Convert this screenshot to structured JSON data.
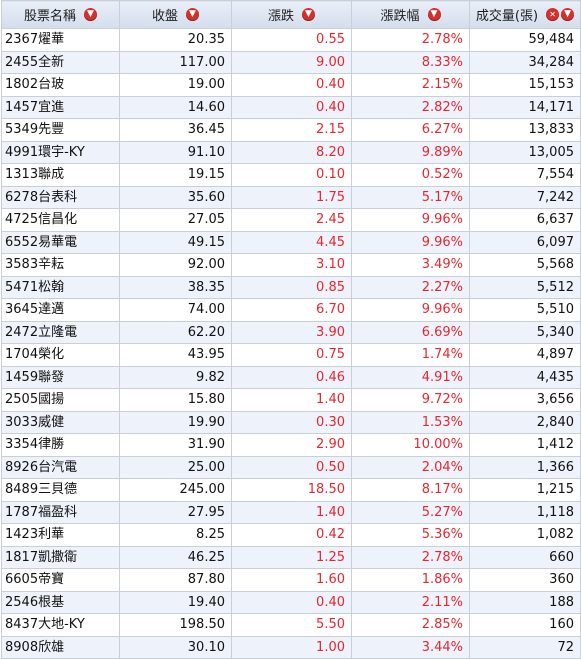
{
  "table": {
    "headers": {
      "name": "股票名稱",
      "close": "收盤",
      "change": "漲跌",
      "pct": "漲跌幅",
      "volume": "成交量(張)"
    },
    "rows": [
      {
        "name": "2367燿華",
        "close": "20.35",
        "change": "0.55",
        "pct": "2.78%",
        "volume": "59,484"
      },
      {
        "name": "2455全新",
        "close": "117.00",
        "change": "9.00",
        "pct": "8.33%",
        "volume": "34,284"
      },
      {
        "name": "1802台玻",
        "close": "19.00",
        "change": "0.40",
        "pct": "2.15%",
        "volume": "15,153"
      },
      {
        "name": "1457宜進",
        "close": "14.60",
        "change": "0.40",
        "pct": "2.82%",
        "volume": "14,171"
      },
      {
        "name": "5349先豐",
        "close": "36.45",
        "change": "2.15",
        "pct": "6.27%",
        "volume": "13,833"
      },
      {
        "name": "4991環宇-KY",
        "close": "91.10",
        "change": "8.20",
        "pct": "9.89%",
        "volume": "13,005"
      },
      {
        "name": "1313聯成",
        "close": "19.15",
        "change": "0.10",
        "pct": "0.52%",
        "volume": "7,554"
      },
      {
        "name": "6278台表科",
        "close": "35.60",
        "change": "1.75",
        "pct": "5.17%",
        "volume": "7,242"
      },
      {
        "name": "4725信昌化",
        "close": "27.05",
        "change": "2.45",
        "pct": "9.96%",
        "volume": "6,637"
      },
      {
        "name": "6552易華電",
        "close": "49.15",
        "change": "4.45",
        "pct": "9.96%",
        "volume": "6,097"
      },
      {
        "name": "3583辛耘",
        "close": "92.00",
        "change": "3.10",
        "pct": "3.49%",
        "volume": "5,568"
      },
      {
        "name": "5471松翰",
        "close": "38.35",
        "change": "0.85",
        "pct": "2.27%",
        "volume": "5,512"
      },
      {
        "name": "3645達邁",
        "close": "74.00",
        "change": "6.70",
        "pct": "9.96%",
        "volume": "5,510"
      },
      {
        "name": "2472立隆電",
        "close": "62.20",
        "change": "3.90",
        "pct": "6.69%",
        "volume": "5,340"
      },
      {
        "name": "1704榮化",
        "close": "43.95",
        "change": "0.75",
        "pct": "1.74%",
        "volume": "4,897"
      },
      {
        "name": "1459聯發",
        "close": "9.82",
        "change": "0.46",
        "pct": "4.91%",
        "volume": "4,435"
      },
      {
        "name": "2505國揚",
        "close": "15.80",
        "change": "1.40",
        "pct": "9.72%",
        "volume": "3,656"
      },
      {
        "name": "3033威健",
        "close": "19.90",
        "change": "0.30",
        "pct": "1.53%",
        "volume": "2,840"
      },
      {
        "name": "3354律勝",
        "close": "31.90",
        "change": "2.90",
        "pct": "10.00%",
        "volume": "1,412"
      },
      {
        "name": "8926台汽電",
        "close": "25.00",
        "change": "0.50",
        "pct": "2.04%",
        "volume": "1,366"
      },
      {
        "name": "8489三貝德",
        "close": "245.00",
        "change": "18.50",
        "pct": "8.17%",
        "volume": "1,215"
      },
      {
        "name": "1787福盈科",
        "close": "27.95",
        "change": "1.40",
        "pct": "5.27%",
        "volume": "1,118"
      },
      {
        "name": "1423利華",
        "close": "8.25",
        "change": "0.42",
        "pct": "5.36%",
        "volume": "1,082"
      },
      {
        "name": "1817凱撒衛",
        "close": "46.25",
        "change": "1.25",
        "pct": "2.78%",
        "volume": "660"
      },
      {
        "name": "6605帝寶",
        "close": "87.80",
        "change": "1.60",
        "pct": "1.86%",
        "volume": "360"
      },
      {
        "name": "2546根基",
        "close": "19.40",
        "change": "0.40",
        "pct": "2.11%",
        "volume": "188"
      },
      {
        "name": "8437大地-KY",
        "close": "198.50",
        "change": "5.50",
        "pct": "2.85%",
        "volume": "160"
      },
      {
        "name": "8908欣雄",
        "close": "30.10",
        "change": "1.00",
        "pct": "3.44%",
        "volume": "72"
      }
    ]
  },
  "icons": {
    "sort": "sort-down-icon",
    "remove": "remove-sort-icon"
  },
  "colors": {
    "up": "#e8262f",
    "header_bg": "#dbe3ef",
    "row_alt": "#eef3fb"
  }
}
